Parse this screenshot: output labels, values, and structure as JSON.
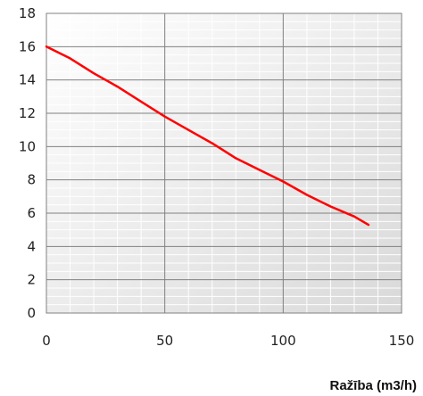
{
  "chart_data": {
    "type": "line",
    "title": "",
    "xlabel": "Ražība (m3/h)",
    "ylabel": "",
    "xlim": [
      0,
      150
    ],
    "ylim": [
      0,
      18
    ],
    "x_ticks": [
      0,
      50,
      100,
      150
    ],
    "y_ticks": [
      0,
      2,
      4,
      6,
      8,
      10,
      12,
      14,
      16,
      18
    ],
    "grid": true,
    "legend": "none",
    "series": [
      {
        "color": "#ff0000",
        "points": [
          [
            0,
            16
          ],
          [
            10,
            15.3
          ],
          [
            20,
            14.4
          ],
          [
            30,
            13.6
          ],
          [
            40,
            12.7
          ],
          [
            50,
            11.8
          ],
          [
            60,
            11.0
          ],
          [
            70,
            10.2
          ],
          [
            80,
            9.3
          ],
          [
            90,
            8.6
          ],
          [
            100,
            7.9
          ],
          [
            110,
            7.1
          ],
          [
            120,
            6.4
          ],
          [
            130,
            5.8
          ],
          [
            136,
            5.3
          ]
        ]
      }
    ]
  },
  "colors": {
    "plot_background": "#e6e6e6",
    "minor_grid": "#ffffff",
    "major_grid": "#808080",
    "axis": "#808080"
  }
}
